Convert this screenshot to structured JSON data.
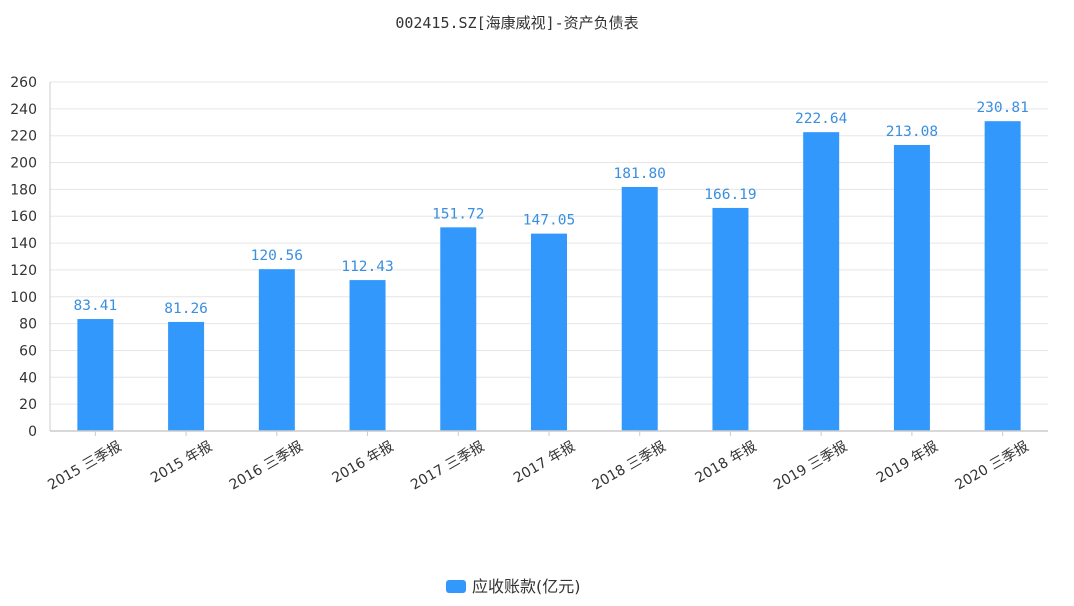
{
  "chart_data": {
    "type": "bar",
    "title": "002415.SZ[海康威视]-资产负债表",
    "categories": [
      "2015 三季报",
      "2015 年报",
      "2016 三季报",
      "2016 年报",
      "2017 三季报",
      "2017 年报",
      "2018 三季报",
      "2018 年报",
      "2019 三季报",
      "2019 年报",
      "2020 三季报"
    ],
    "series": [
      {
        "name": "应收账款(亿元)",
        "values": [
          83.41,
          81.26,
          120.56,
          112.43,
          151.72,
          147.05,
          181.8,
          166.19,
          222.64,
          213.08,
          230.81
        ],
        "labels": [
          "83.41",
          "81.26",
          "120.56",
          "112.43",
          "151.72",
          "147.05",
          "181.80",
          "166.19",
          "222.64",
          "213.08",
          "230.81"
        ],
        "color": "#3398fc",
        "label_color": "#3a8fe0"
      }
    ],
    "ylim": [
      0,
      260
    ],
    "yticks": [
      "0",
      "20",
      "40",
      "60",
      "80",
      "100",
      "120",
      "140",
      "160",
      "180",
      "200",
      "220",
      "240",
      "260"
    ],
    "grid": true,
    "legend_position": "bottom-center"
  }
}
